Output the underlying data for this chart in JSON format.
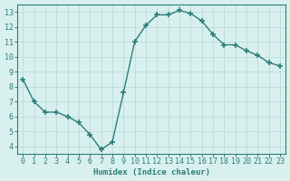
{
  "x": [
    0,
    1,
    2,
    3,
    4,
    5,
    6,
    7,
    8,
    9,
    10,
    11,
    12,
    13,
    14,
    15,
    16,
    17,
    18,
    19,
    20,
    21,
    22,
    23
  ],
  "y": [
    8.5,
    7.0,
    6.3,
    6.3,
    6.0,
    5.6,
    4.8,
    3.8,
    4.3,
    7.6,
    11.0,
    12.1,
    12.8,
    12.8,
    13.1,
    12.9,
    12.4,
    11.5,
    10.8,
    10.8,
    10.4,
    10.1,
    9.6,
    9.4
  ],
  "line_color": "#2e7d7d",
  "marker": "+",
  "marker_size": 4,
  "bg_color": "#d8f0ee",
  "grid_color": "#c0dede",
  "xlabel": "Humidex (Indice chaleur)",
  "ylim": [
    3.5,
    13.5
  ],
  "xlim": [
    -0.5,
    23.5
  ],
  "yticks": [
    4,
    5,
    6,
    7,
    8,
    9,
    10,
    11,
    12,
    13
  ],
  "xticks": [
    0,
    1,
    2,
    3,
    4,
    5,
    6,
    7,
    8,
    9,
    10,
    11,
    12,
    13,
    14,
    15,
    16,
    17,
    18,
    19,
    20,
    21,
    22,
    23
  ],
  "xlabel_fontsize": 6.5,
  "tick_fontsize": 6,
  "tick_color": "#2e7d7d",
  "axis_color": "#2e7d7d",
  "linewidth": 1.0,
  "marker_linewidth": 1.2
}
